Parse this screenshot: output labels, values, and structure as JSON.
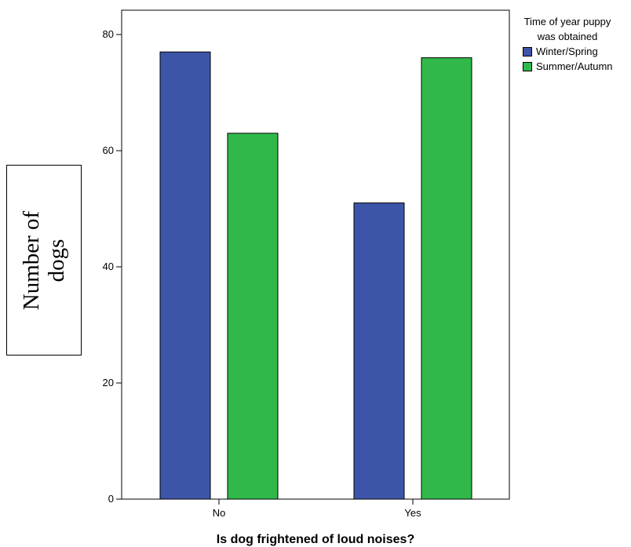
{
  "chart_data": {
    "type": "bar",
    "categories": [
      "No",
      "Yes"
    ],
    "series": [
      {
        "name": "Winter/Spring",
        "values": [
          77,
          51
        ],
        "color": "#3d55a8"
      },
      {
        "name": "Summer/Autumn",
        "values": [
          63,
          76
        ],
        "color": "#30b94a"
      }
    ],
    "xlabel": "Is dog frightened of loud noises?",
    "ylabel": [
      "Number of",
      "dogs"
    ],
    "ylim": [
      0,
      80
    ],
    "yticks": [
      0,
      20,
      40,
      60,
      80
    ],
    "grid": false,
    "legend": {
      "title": [
        "Time of year puppy",
        "was obtained"
      ],
      "placement": "right"
    }
  }
}
